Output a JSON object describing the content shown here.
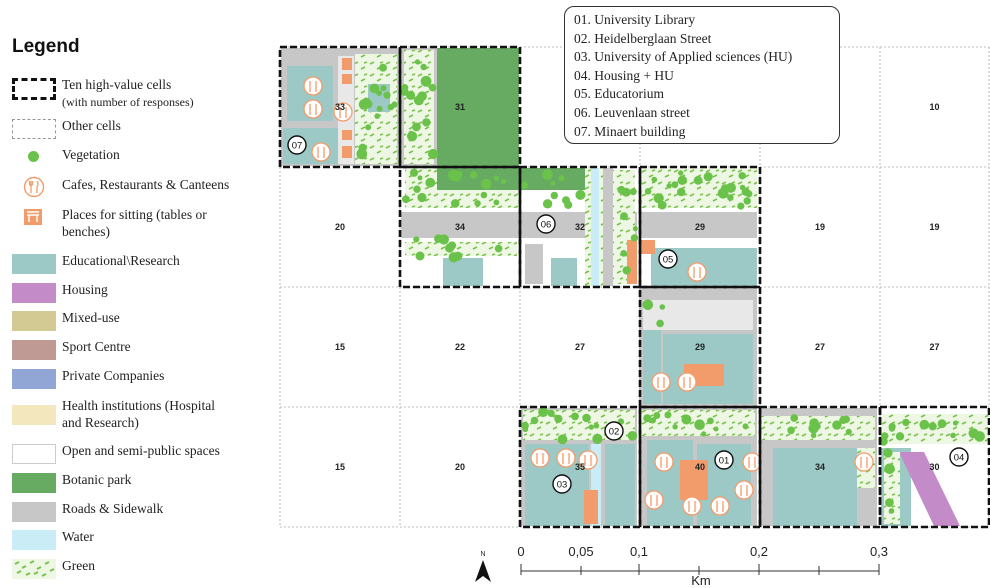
{
  "legend": {
    "title": "Legend",
    "items": [
      {
        "label": "Ten high-value cells",
        "sub": "(with number of responses)",
        "symbol": "dashed-thick"
      },
      {
        "label": "Other cells",
        "symbol": "dashed-thin"
      },
      {
        "label": "Vegetation",
        "symbol": "dot",
        "color": "#6bc24a"
      },
      {
        "label": "Cafes, Restaurants & Canteens",
        "symbol": "cafe-icon",
        "color": "#f39c6b"
      },
      {
        "label": "Places for sitting (tables or",
        "sub": "benches)",
        "symbol": "bench-icon",
        "color": "#f39c6b"
      },
      {
        "label": "Educational\\Research",
        "symbol": "fill",
        "color": "#9cc8c5"
      },
      {
        "label": "Housing",
        "symbol": "fill",
        "color": "#c38bc7"
      },
      {
        "label": "Mixed-use",
        "symbol": "fill",
        "color": "#d2c993"
      },
      {
        "label": "Sport Centre",
        "symbol": "fill",
        "color": "#bf9a95"
      },
      {
        "label": "Private Companies",
        "symbol": "fill",
        "color": "#92a6d6"
      },
      {
        "label": "Health institutions (Hospital",
        "sub": "and Research)",
        "symbol": "fill",
        "color": "#f3e7bd"
      },
      {
        "label": "Open and semi-public spaces",
        "symbol": "outline",
        "color": "#ffffff"
      },
      {
        "label": "Botanic park",
        "symbol": "fill",
        "color": "#66ab61"
      },
      {
        "label": "Roads & Sidewalk",
        "symbol": "fill",
        "color": "#c7c7c7"
      },
      {
        "label": "Water",
        "symbol": "fill",
        "color": "#c9ecf7"
      },
      {
        "label": "Green",
        "symbol": "green-pattern",
        "color": "#cfe9a8"
      }
    ]
  },
  "key": [
    "01. University Library",
    "02. Heidelberglaan Street",
    "03. University of Applied sciences (HU)",
    "04. Housing +  HU",
    "05. Educatorium",
    "06. Leuvenlaan street",
    "07. Minaert building"
  ],
  "cells": [
    {
      "row": 0,
      "col": 0,
      "value": "33",
      "high": true
    },
    {
      "row": 0,
      "col": 1,
      "value": "31",
      "high": true
    },
    {
      "row": 0,
      "col": 5,
      "value": "10",
      "high": false
    },
    {
      "row": 1,
      "col": 0,
      "value": "20",
      "high": false
    },
    {
      "row": 1,
      "col": 1,
      "value": "34",
      "high": true
    },
    {
      "row": 1,
      "col": 2,
      "value": "32",
      "high": true
    },
    {
      "row": 1,
      "col": 3,
      "value": "29",
      "high": true
    },
    {
      "row": 1,
      "col": 4,
      "value": "19",
      "high": false
    },
    {
      "row": 1,
      "col": 5,
      "value": "19",
      "high": false
    },
    {
      "row": 2,
      "col": 0,
      "value": "15",
      "high": false
    },
    {
      "row": 2,
      "col": 1,
      "value": "22",
      "high": false
    },
    {
      "row": 2,
      "col": 2,
      "value": "27",
      "high": false
    },
    {
      "row": 2,
      "col": 3,
      "value": "29",
      "high": true
    },
    {
      "row": 2,
      "col": 4,
      "value": "27",
      "high": false
    },
    {
      "row": 2,
      "col": 5,
      "value": "27",
      "high": false
    },
    {
      "row": 3,
      "col": 0,
      "value": "15",
      "high": false
    },
    {
      "row": 3,
      "col": 1,
      "value": "20",
      "high": false
    },
    {
      "row": 3,
      "col": 2,
      "value": "35",
      "high": true
    },
    {
      "row": 3,
      "col": 3,
      "value": "40",
      "high": true
    },
    {
      "row": 3,
      "col": 4,
      "value": "34",
      "high": true
    },
    {
      "row": 3,
      "col": 5,
      "value": "30",
      "high": true
    }
  ],
  "markers": [
    "01",
    "02",
    "03",
    "04",
    "05",
    "06",
    "07"
  ],
  "scale": {
    "labels": [
      "0",
      "0,05",
      "0,1",
      "0,2",
      "0,3"
    ],
    "unit": "Km",
    "north": "N"
  }
}
